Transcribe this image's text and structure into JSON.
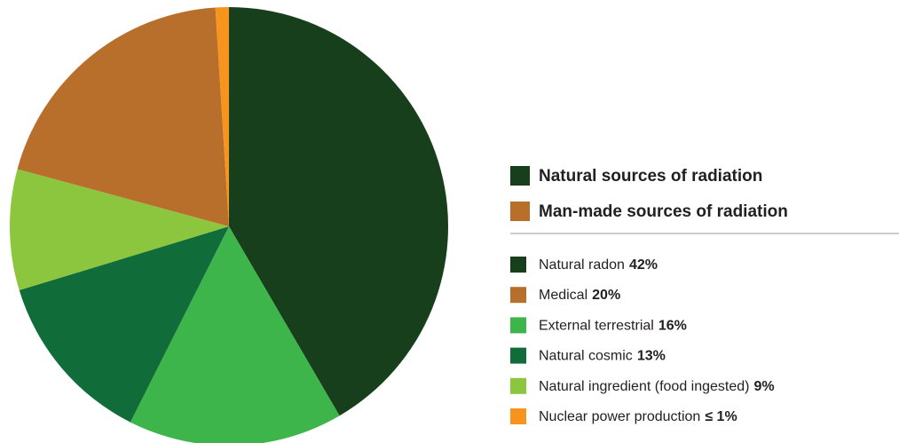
{
  "chart_data": {
    "type": "pie",
    "groups": [
      {
        "name": "Natural sources of radiation",
        "color": "#183f1c"
      },
      {
        "name": "Man-made sources of radiation",
        "color": "#b96e2a"
      }
    ],
    "categories": [
      "Natural radon",
      "Medical",
      "External terrestrial",
      "Natural cosmic",
      "Natural ingredient (food ingested)",
      "Nuclear power production"
    ],
    "values": [
      42,
      20,
      16,
      13,
      9,
      1
    ],
    "value_labels": [
      "42%",
      "20%",
      "16%",
      "13%",
      "9%",
      "≤ 1%"
    ],
    "colors": [
      "#173f1c",
      "#b86f2b",
      "#3db54a",
      "#106d3a",
      "#8cc63f",
      "#f7941d"
    ],
    "slice_order": [
      0,
      2,
      3,
      4,
      1,
      5
    ]
  }
}
